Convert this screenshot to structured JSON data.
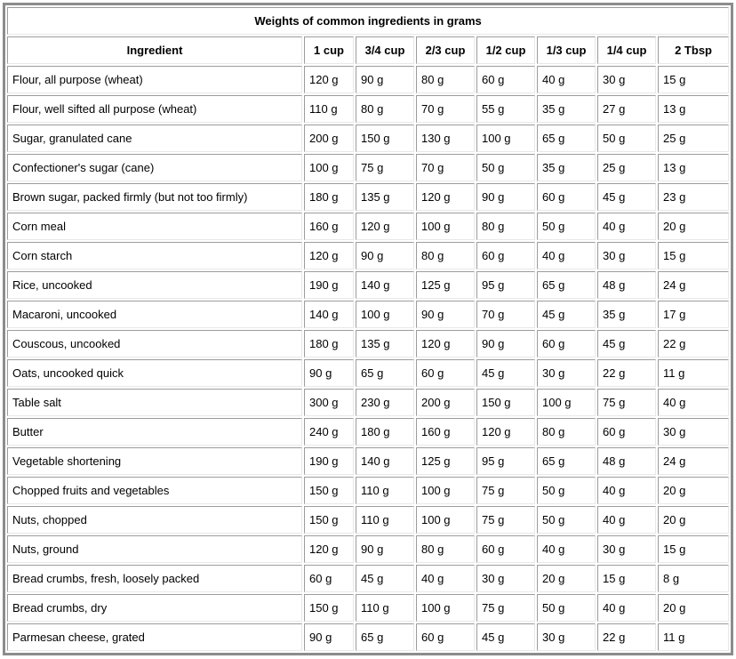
{
  "chart_data": {
    "type": "table",
    "title": "Weights of common ingredients in grams",
    "columns": [
      "Ingredient",
      "1 cup",
      "3/4 cup",
      "2/3 cup",
      "1/2 cup",
      "1/3 cup",
      "1/4 cup",
      "2 Tbsp"
    ],
    "rows": [
      {
        "ingredient": "Flour, all purpose (wheat)",
        "values": [
          "120 g",
          "90 g",
          "80 g",
          "60 g",
          "40 g",
          "30 g",
          "15 g"
        ]
      },
      {
        "ingredient": "Flour, well sifted all purpose (wheat)",
        "values": [
          "110 g",
          "80 g",
          "70 g",
          "55 g",
          "35 g",
          "27 g",
          "13 g"
        ]
      },
      {
        "ingredient": "Sugar, granulated cane",
        "values": [
          "200 g",
          "150 g",
          "130 g",
          "100 g",
          "65 g",
          "50 g",
          "25 g"
        ]
      },
      {
        "ingredient": "Confectioner's sugar (cane)",
        "values": [
          "100 g",
          "75 g",
          "70 g",
          "50 g",
          "35 g",
          "25 g",
          "13 g"
        ]
      },
      {
        "ingredient": "Brown sugar, packed firmly (but not too firmly)",
        "values": [
          "180 g",
          "135 g",
          "120 g",
          "90 g",
          "60 g",
          "45 g",
          "23 g"
        ]
      },
      {
        "ingredient": "Corn meal",
        "values": [
          "160 g",
          "120 g",
          "100 g",
          "80 g",
          "50 g",
          "40 g",
          "20 g"
        ]
      },
      {
        "ingredient": "Corn starch",
        "values": [
          "120 g",
          "90 g",
          "80 g",
          "60 g",
          "40 g",
          "30 g",
          "15 g"
        ]
      },
      {
        "ingredient": "Rice, uncooked",
        "values": [
          "190 g",
          "140 g",
          "125 g",
          "95 g",
          "65 g",
          "48 g",
          "24 g"
        ]
      },
      {
        "ingredient": "Macaroni, uncooked",
        "values": [
          "140 g",
          "100 g",
          "90 g",
          "70 g",
          "45 g",
          "35 g",
          "17 g"
        ]
      },
      {
        "ingredient": "Couscous, uncooked",
        "values": [
          "180 g",
          "135 g",
          "120 g",
          "90 g",
          "60 g",
          "45 g",
          "22 g"
        ]
      },
      {
        "ingredient": "Oats, uncooked quick",
        "values": [
          "90 g",
          "65 g",
          "60 g",
          "45 g",
          "30 g",
          "22 g",
          "11 g"
        ]
      },
      {
        "ingredient": "Table salt",
        "values": [
          "300 g",
          "230 g",
          "200 g",
          "150 g",
          "100 g",
          "75 g",
          "40 g"
        ]
      },
      {
        "ingredient": "Butter",
        "values": [
          "240 g",
          "180 g",
          "160 g",
          "120 g",
          "80 g",
          "60 g",
          "30 g"
        ]
      },
      {
        "ingredient": "Vegetable shortening",
        "values": [
          "190 g",
          "140 g",
          "125 g",
          "95 g",
          "65 g",
          "48 g",
          "24 g"
        ]
      },
      {
        "ingredient": "Chopped fruits and vegetables",
        "values": [
          "150 g",
          "110 g",
          "100 g",
          "75 g",
          "50 g",
          "40 g",
          "20 g"
        ]
      },
      {
        "ingredient": "Nuts, chopped",
        "values": [
          "150 g",
          "110 g",
          "100 g",
          "75 g",
          "50 g",
          "40 g",
          "20 g"
        ]
      },
      {
        "ingredient": "Nuts, ground",
        "values": [
          "120 g",
          "90 g",
          "80 g",
          "60 g",
          "40 g",
          "30 g",
          "15 g"
        ]
      },
      {
        "ingredient": "Bread crumbs, fresh, loosely packed",
        "values": [
          "60 g",
          "45 g",
          "40 g",
          "30 g",
          "20 g",
          "15 g",
          "8 g"
        ]
      },
      {
        "ingredient": "Bread crumbs, dry",
        "values": [
          "150 g",
          "110 g",
          "100 g",
          "75 g",
          "50 g",
          "40 g",
          "20 g"
        ]
      },
      {
        "ingredient": "Parmesan cheese, grated",
        "values": [
          "90 g",
          "65 g",
          "60 g",
          "45 g",
          "30 g",
          "22 g",
          "11 g"
        ]
      }
    ],
    "layout_hints": {
      "grid": true,
      "header_bold": true,
      "value_alignment": "left"
    }
  },
  "palette": {
    "text": "#000000",
    "background": "#ffffff",
    "outer_border": "#8c8c8c",
    "cell_border_dark": "#9c9c9c",
    "cell_border_light": "#e8e8e8"
  }
}
